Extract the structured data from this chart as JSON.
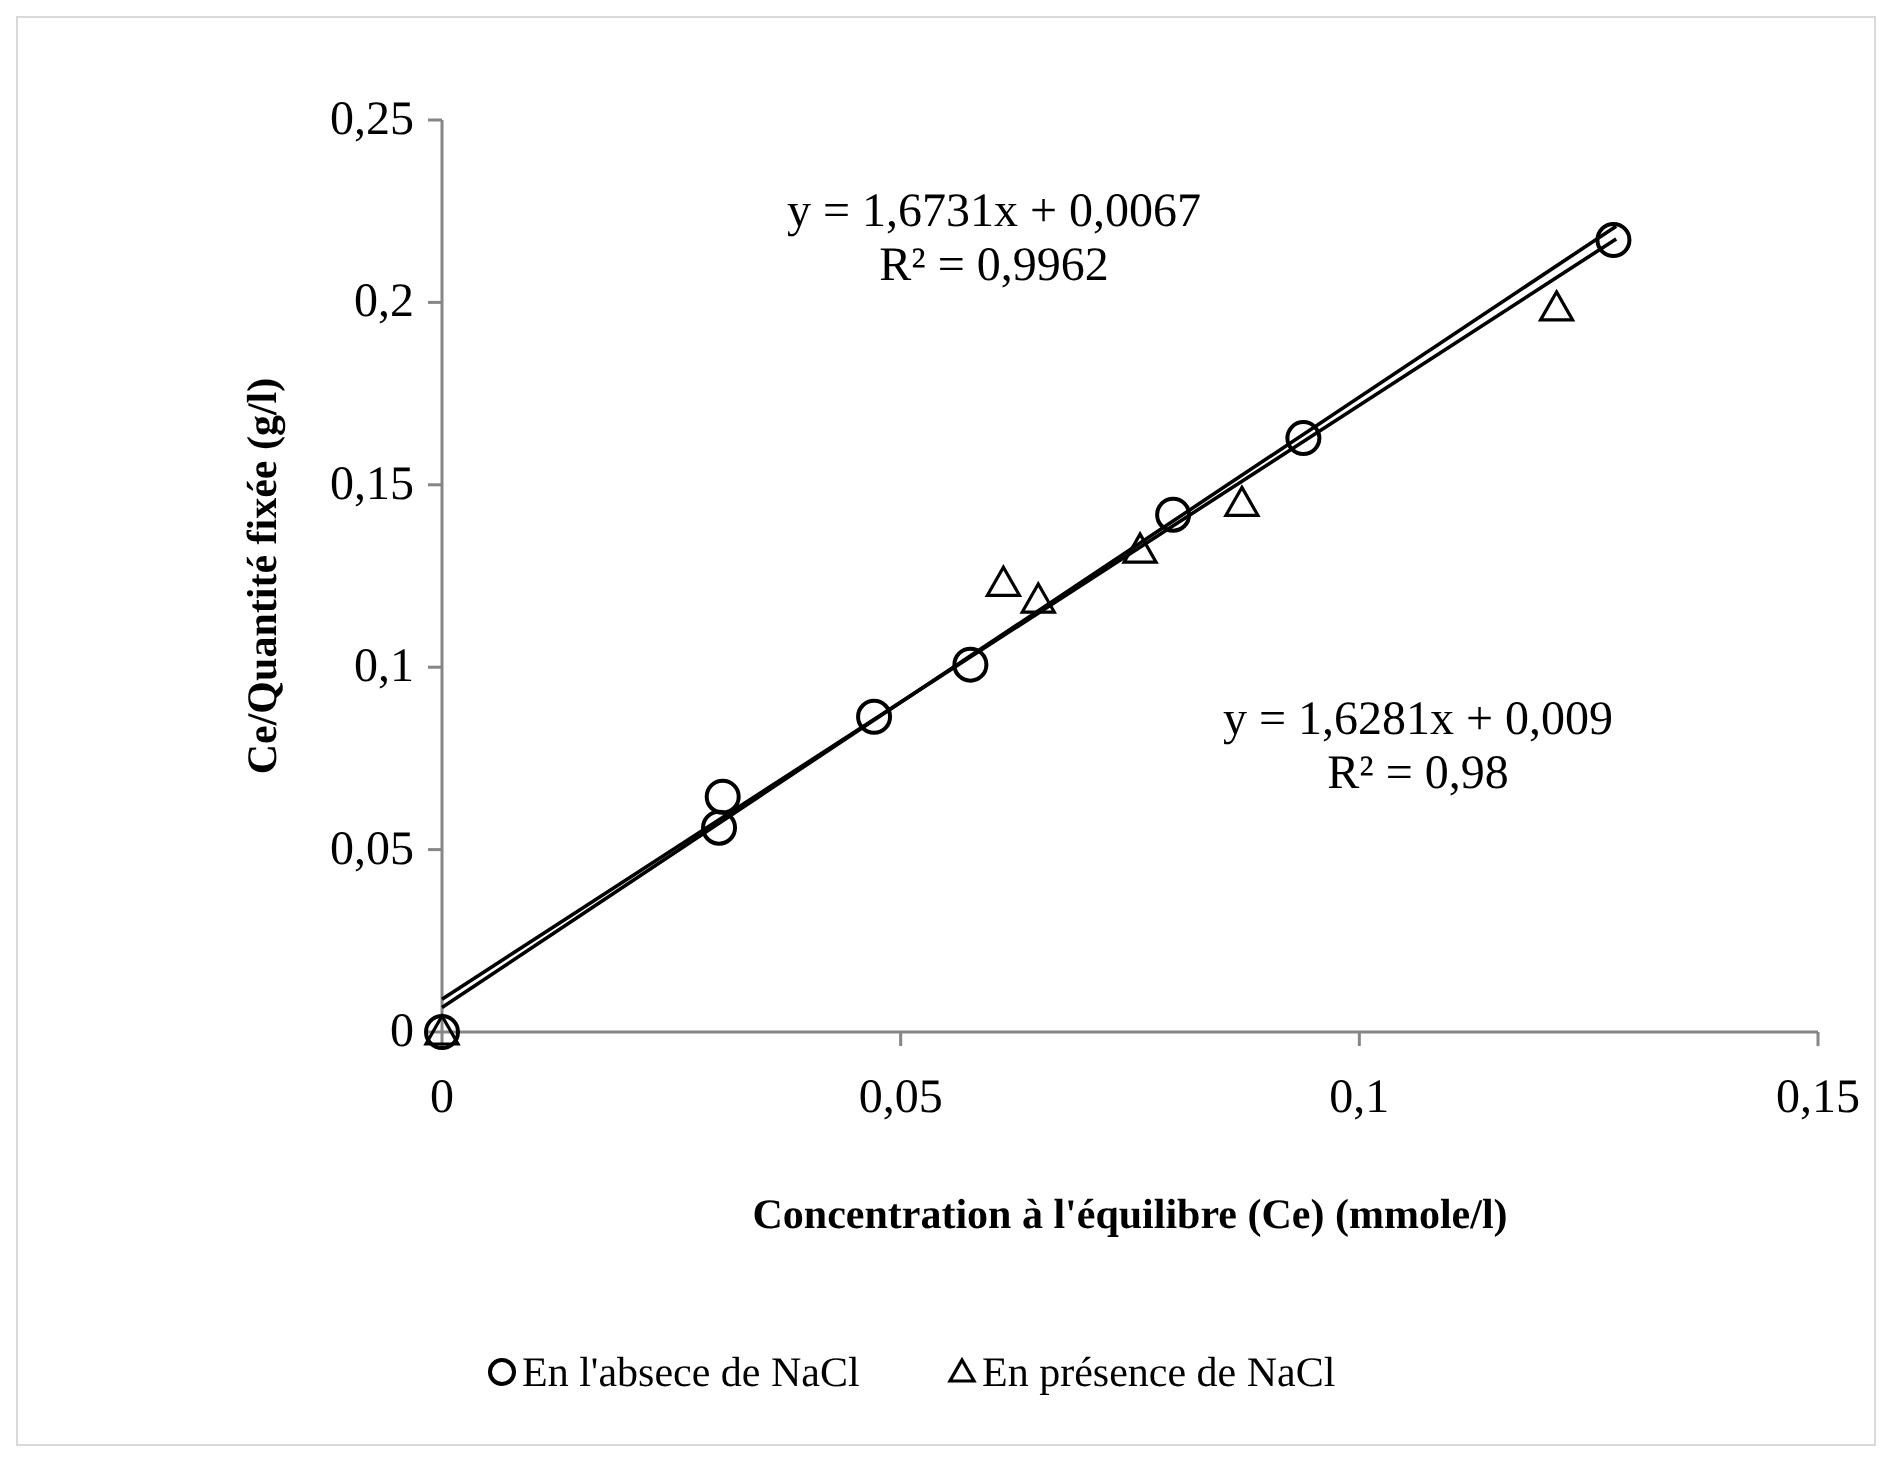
{
  "chart_data": {
    "type": "scatter",
    "xlabel": "Concentration à l'équilibre (Ce) (mmole/l)",
    "ylabel": "Ce/Quantité fixée (g/l)",
    "xlim": [
      0,
      0.15
    ],
    "xticks": [
      {
        "value": 0,
        "label": "0"
      },
      {
        "value": 0.05,
        "label": "0,05"
      },
      {
        "value": 0.1,
        "label": "0,1"
      },
      {
        "value": 0.15,
        "label": "0,15"
      }
    ],
    "ylim": [
      0,
      0.25
    ],
    "yticks": [
      {
        "value": 0,
        "label": "0"
      },
      {
        "value": 0.05,
        "label": "0,05"
      },
      {
        "value": 0.1,
        "label": "0,1"
      },
      {
        "value": 0.15,
        "label": "0,15"
      },
      {
        "value": 0.2,
        "label": "0,2"
      },
      {
        "value": 0.25,
        "label": "0,25"
      }
    ],
    "grid": false,
    "legend": "bottom",
    "series": [
      {
        "name": "En l'absece de NaCl",
        "color": "#000000",
        "marker": "circle",
        "x": [
          0,
          0.0302,
          0.0306,
          0.0471,
          0.0576,
          0.0797,
          0.0939,
          0.1277
        ],
        "values": [
          0,
          0.056,
          0.0645,
          0.0864,
          0.1007,
          0.1418,
          0.1628,
          0.2171
        ]
      },
      {
        "name": "En présence de NaCl",
        "color": "#000000",
        "marker": "triangle",
        "x": [
          0,
          0.0612,
          0.065,
          0.0761,
          0.0872,
          0.1215
        ],
        "values": [
          0,
          0.123,
          0.1184,
          0.1321,
          0.1449,
          0.1985
        ]
      },
      {
        "type": "line",
        "color": "#000000",
        "marker": "none",
        "x": [
          0,
          0.128
        ],
        "values": [
          0.0067,
          0.2209
        ]
      },
      {
        "type": "line",
        "color": "#000000",
        "marker": "none",
        "x": [
          0,
          0.128
        ],
        "values": [
          0.009,
          0.2174
        ]
      }
    ],
    "annotations": [
      "y = 1,6731x + 0,0067\nR² = 0,9962",
      "y = 1,6281x + 0,009\nR² = 0,98"
    ]
  }
}
